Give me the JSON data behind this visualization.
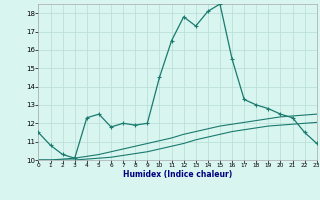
{
  "xlabel": "Humidex (Indice chaleur)",
  "x": [
    0,
    1,
    2,
    3,
    4,
    5,
    6,
    7,
    8,
    9,
    10,
    11,
    12,
    13,
    14,
    15,
    16,
    17,
    18,
    19,
    20,
    21,
    22,
    23
  ],
  "line1": [
    11.5,
    10.8,
    10.3,
    10.1,
    12.3,
    12.5,
    11.8,
    12.0,
    11.9,
    12.0,
    14.5,
    16.5,
    17.8,
    17.3,
    18.1,
    18.5,
    15.5,
    13.3,
    13.0,
    12.8,
    12.5,
    12.3,
    11.5,
    10.9
  ],
  "line2": [
    10.0,
    10.0,
    10.0,
    10.0,
    10.05,
    10.1,
    10.15,
    10.25,
    10.35,
    10.45,
    10.6,
    10.75,
    10.9,
    11.1,
    11.25,
    11.4,
    11.55,
    11.65,
    11.75,
    11.85,
    11.9,
    11.95,
    12.0,
    12.05
  ],
  "line3": [
    10.0,
    10.0,
    10.05,
    10.1,
    10.2,
    10.3,
    10.45,
    10.6,
    10.75,
    10.9,
    11.05,
    11.2,
    11.4,
    11.55,
    11.7,
    11.85,
    11.95,
    12.05,
    12.15,
    12.25,
    12.35,
    12.4,
    12.45,
    12.5
  ],
  "line_color": "#1a7a6e",
  "bg_color": "#d8f5f0",
  "grid_color": "#b8dcd6",
  "ylim": [
    10,
    18.5
  ],
  "yticks": [
    10,
    11,
    12,
    13,
    14,
    15,
    16,
    17,
    18
  ],
  "xlim": [
    0,
    23
  ],
  "xticks": [
    0,
    1,
    2,
    3,
    4,
    5,
    6,
    7,
    8,
    9,
    10,
    11,
    12,
    13,
    14,
    15,
    16,
    17,
    18,
    19,
    20,
    21,
    22,
    23
  ]
}
